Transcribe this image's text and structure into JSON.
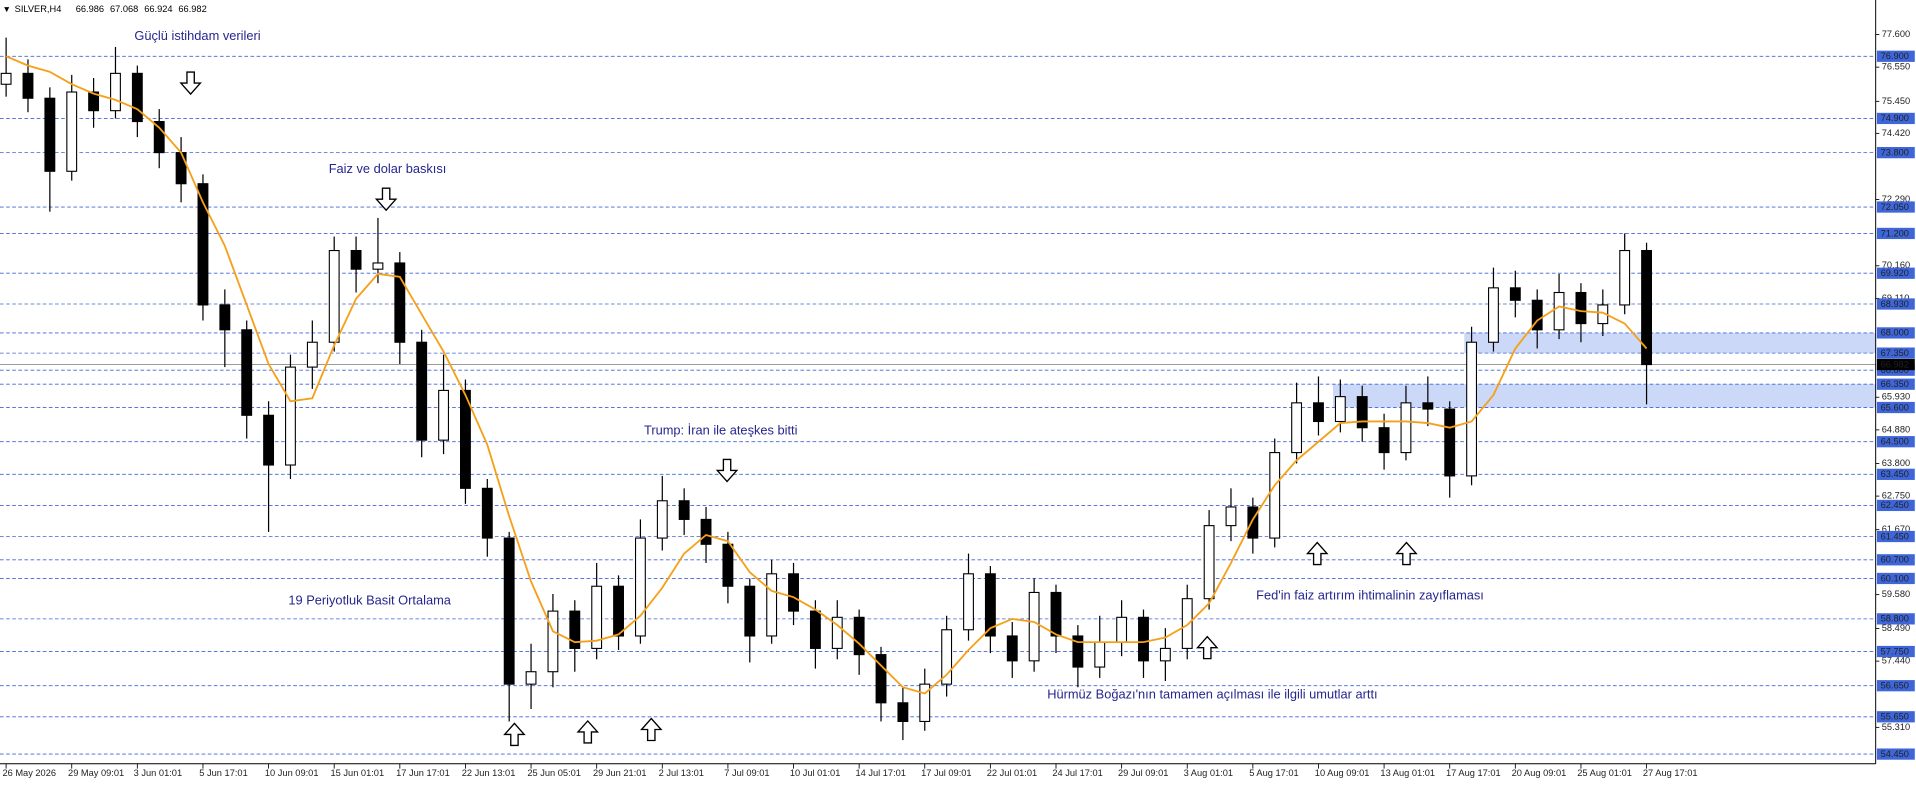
{
  "chart_data": {
    "type": "candlestick",
    "symbol": "SILVER,H4",
    "quote": [
      66.986,
      67.068,
      66.924,
      66.982
    ],
    "categories": [
      "26 May 2026",
      null,
      null,
      "29 May 09:01",
      null,
      null,
      "3 Jun 01:01",
      null,
      null,
      "5 Jun 17:01",
      null,
      null,
      "10 Jun 09:01",
      null,
      null,
      "15 Jun 01:01",
      null,
      null,
      "17 Jun 17:01",
      null,
      null,
      "22 Jun 13:01",
      null,
      null,
      "25 Jun 05:01",
      null,
      null,
      "29 Jun 21:01",
      null,
      null,
      "2 Jul 13:01",
      null,
      null,
      "7 Jul 09:01",
      null,
      null,
      "10 Jul 01:01",
      null,
      null,
      "14 Jul 17:01",
      null,
      null,
      "17 Jul 09:01",
      null,
      null,
      "22 Jul 01:01",
      null,
      null,
      "24 Jul 17:01",
      null,
      null,
      "29 Jul 09:01",
      null,
      null,
      "3 Aug 01:01",
      null,
      null,
      "5 Aug 17:01",
      null,
      null,
      "10 Aug 09:01",
      null,
      null,
      "13 Aug 01:01",
      null,
      null,
      "17 Aug 17:01",
      null,
      null,
      "20 Aug 09:01",
      null,
      null,
      "25 Aug 01:01",
      null,
      null,
      "27 Aug 17:01"
    ],
    "open": [
      76.0,
      76.35,
      75.55,
      73.2,
      75.75,
      75.15,
      76.35,
      74.8,
      73.8,
      72.8,
      68.9,
      68.1,
      65.35,
      63.75,
      66.9,
      67.7,
      70.65,
      70.05,
      70.25,
      67.7,
      64.55,
      66.15,
      63.0,
      61.4,
      56.7,
      57.1,
      59.05,
      57.85,
      59.85,
      58.25,
      61.4,
      62.6,
      62.0,
      61.2,
      59.85,
      58.25,
      60.25,
      59.05,
      57.85,
      58.85,
      57.65,
      56.1,
      55.5,
      56.7,
      58.45,
      60.25,
      58.25,
      57.45,
      59.65,
      58.25,
      57.25,
      58.05,
      58.85,
      57.45,
      57.85,
      59.45,
      61.8,
      62.4,
      61.4,
      64.15,
      65.75,
      65.15,
      65.95,
      64.95,
      64.15,
      65.75,
      65.55,
      63.4,
      67.7,
      69.45,
      69.05,
      68.1,
      69.3,
      68.3,
      68.9,
      70.65
    ],
    "high": [
      77.5,
      76.8,
      75.9,
      76.3,
      76.2,
      77.2,
      76.6,
      75.2,
      74.3,
      73.1,
      69.4,
      68.4,
      65.8,
      67.3,
      68.4,
      71.1,
      71.1,
      71.7,
      70.6,
      68.1,
      67.3,
      66.5,
      63.3,
      61.6,
      58.0,
      59.6,
      59.4,
      60.6,
      60.2,
      62.0,
      63.4,
      63.0,
      62.4,
      61.6,
      60.1,
      60.7,
      60.6,
      59.4,
      59.4,
      59.1,
      57.9,
      56.6,
      57.2,
      58.9,
      60.9,
      60.5,
      58.7,
      60.1,
      59.9,
      58.6,
      58.9,
      59.4,
      59.1,
      58.5,
      59.9,
      62.3,
      63.0,
      62.7,
      64.6,
      66.4,
      66.6,
      66.5,
      66.3,
      65.4,
      66.3,
      66.6,
      65.8,
      68.2,
      70.1,
      70.0,
      69.4,
      69.9,
      69.6,
      69.4,
      71.2,
      70.9
    ],
    "low": [
      75.6,
      75.1,
      71.9,
      72.9,
      74.6,
      74.9,
      74.3,
      73.3,
      72.2,
      68.4,
      66.9,
      64.6,
      61.6,
      63.3,
      66.2,
      67.4,
      69.3,
      69.6,
      67.0,
      64.0,
      64.1,
      62.5,
      60.8,
      55.5,
      55.9,
      56.6,
      57.1,
      57.5,
      57.8,
      58.0,
      61.0,
      61.5,
      60.6,
      59.3,
      57.4,
      58.0,
      58.6,
      57.2,
      57.5,
      57.0,
      55.5,
      54.9,
      55.2,
      56.3,
      58.1,
      57.7,
      56.9,
      57.1,
      57.7,
      56.6,
      56.9,
      57.6,
      56.9,
      56.8,
      57.5,
      59.1,
      61.3,
      60.9,
      61.1,
      63.8,
      64.7,
      64.8,
      64.5,
      63.6,
      63.9,
      65.0,
      62.7,
      63.1,
      67.4,
      68.5,
      67.5,
      67.8,
      67.7,
      67.9,
      68.6,
      65.7
    ],
    "close": [
      76.35,
      75.55,
      73.2,
      75.75,
      75.15,
      76.35,
      74.8,
      73.8,
      72.8,
      68.9,
      68.1,
      65.35,
      63.75,
      66.9,
      67.7,
      70.65,
      70.05,
      70.25,
      67.7,
      64.55,
      66.15,
      63.0,
      61.4,
      56.7,
      57.1,
      59.05,
      57.85,
      59.85,
      58.25,
      61.4,
      62.6,
      62.0,
      61.2,
      59.85,
      58.25,
      60.25,
      59.05,
      57.85,
      58.85,
      57.65,
      56.1,
      55.5,
      56.7,
      58.45,
      60.25,
      58.25,
      57.45,
      59.65,
      58.25,
      57.25,
      58.05,
      58.85,
      57.45,
      57.85,
      59.45,
      61.8,
      62.4,
      61.4,
      64.15,
      65.75,
      65.15,
      65.95,
      64.95,
      64.15,
      65.75,
      65.55,
      63.4,
      67.7,
      69.45,
      69.05,
      68.1,
      69.3,
      68.3,
      68.9,
      70.65,
      66.982
    ],
    "ma": {
      "color": "#f5a01a",
      "values": [
        76.9,
        76.6,
        76.4,
        76.0,
        75.7,
        75.5,
        75.2,
        74.6,
        73.8,
        72.2,
        70.8,
        68.9,
        67.0,
        65.8,
        65.9,
        67.6,
        69.1,
        69.9,
        69.8,
        68.6,
        67.4,
        66.0,
        64.4,
        62.1,
        60.0,
        58.4,
        58.05,
        58.1,
        58.3,
        58.9,
        59.8,
        60.9,
        61.5,
        61.3,
        60.3,
        59.7,
        59.5,
        59.1,
        58.6,
        58.0,
        57.3,
        56.6,
        56.4,
        57.0,
        57.8,
        58.5,
        58.8,
        58.7,
        58.3,
        58.05,
        58.05,
        58.05,
        58.05,
        58.2,
        58.6,
        59.3,
        60.6,
        62.0,
        63.1,
        63.9,
        64.5,
        65.1,
        65.15,
        65.15,
        65.15,
        65.1,
        64.95,
        65.15,
        66.0,
        67.5,
        68.4,
        68.85,
        68.7,
        68.65,
        68.3,
        67.5
      ]
    },
    "ylim": [
      54.14,
      78.71
    ],
    "yticks": [
      {
        "value": 77.6,
        "label": "77.600"
      },
      {
        "value": 76.55,
        "label": "76.550"
      },
      {
        "value": 75.45,
        "label": "75.450"
      },
      {
        "value": 74.42,
        "label": "74.420"
      },
      {
        "value": 72.29,
        "label": "72.290"
      },
      {
        "value": 70.16,
        "label": "70.160"
      },
      {
        "value": 69.11,
        "label": "69.110"
      },
      {
        "value": 65.93,
        "label": "65.930"
      },
      {
        "value": 64.88,
        "label": "64.880"
      },
      {
        "value": 63.8,
        "label": "63.800"
      },
      {
        "value": 62.75,
        "label": "62.750"
      },
      {
        "value": 61.67,
        "label": "61.670"
      },
      {
        "value": 59.58,
        "label": "59.580"
      },
      {
        "value": 58.49,
        "label": "58.490"
      },
      {
        "value": 57.44,
        "label": "57.440"
      },
      {
        "value": 55.31,
        "label": "55.310"
      }
    ],
    "level_color": "#3f66d9",
    "levels": [
      {
        "value": 76.9,
        "label": "76.900"
      },
      {
        "value": 74.9,
        "label": "74.900"
      },
      {
        "value": 73.8,
        "label": "73.800"
      },
      {
        "value": 72.05,
        "label": "72.050"
      },
      {
        "value": 71.2,
        "label": "71.200"
      },
      {
        "value": 69.92,
        "label": "69.920"
      },
      {
        "value": 68.93,
        "label": "68.930"
      },
      {
        "value": 68,
        "label": "68.000"
      },
      {
        "value": 67.35,
        "label": "67.350"
      },
      {
        "value": 66.8,
        "label": "66.800"
      },
      {
        "value": 66.35,
        "label": "66.350"
      },
      {
        "value": 65.6,
        "label": "65.600"
      },
      {
        "value": 64.5,
        "label": "64.500"
      },
      {
        "value": 63.45,
        "label": "63.450"
      },
      {
        "value": 62.45,
        "label": "62.450"
      },
      {
        "value": 61.45,
        "label": "61.450"
      },
      {
        "value": 60.7,
        "label": "60.700"
      },
      {
        "value": 60.1,
        "label": "60.100"
      },
      {
        "value": 58.8,
        "label": "58.800"
      },
      {
        "value": 57.75,
        "label": "57.750"
      },
      {
        "value": 56.65,
        "label": "56.650"
      },
      {
        "value": 55.65,
        "label": "55.650"
      },
      {
        "value": 54.45,
        "label": "54.450"
      }
    ],
    "zones": [
      {
        "low": 67.35,
        "high": 68,
        "start": 67
      },
      {
        "low": 65.6,
        "high": 66.35,
        "start": 61
      }
    ],
    "current_price": 66.982,
    "annotations": [
      "Güçlü istihdam verileri",
      "Faiz ve dolar baskısı",
      "Trump: İran ile ateşkes bitti",
      "19 Periyotluk Basit Ortalama",
      "Fed'in faiz artırım ihtimalinin zayıflaması",
      "Hürmüz Boğazı'nın tamamen açılması ile ilgili umutlar arttı"
    ]
  }
}
